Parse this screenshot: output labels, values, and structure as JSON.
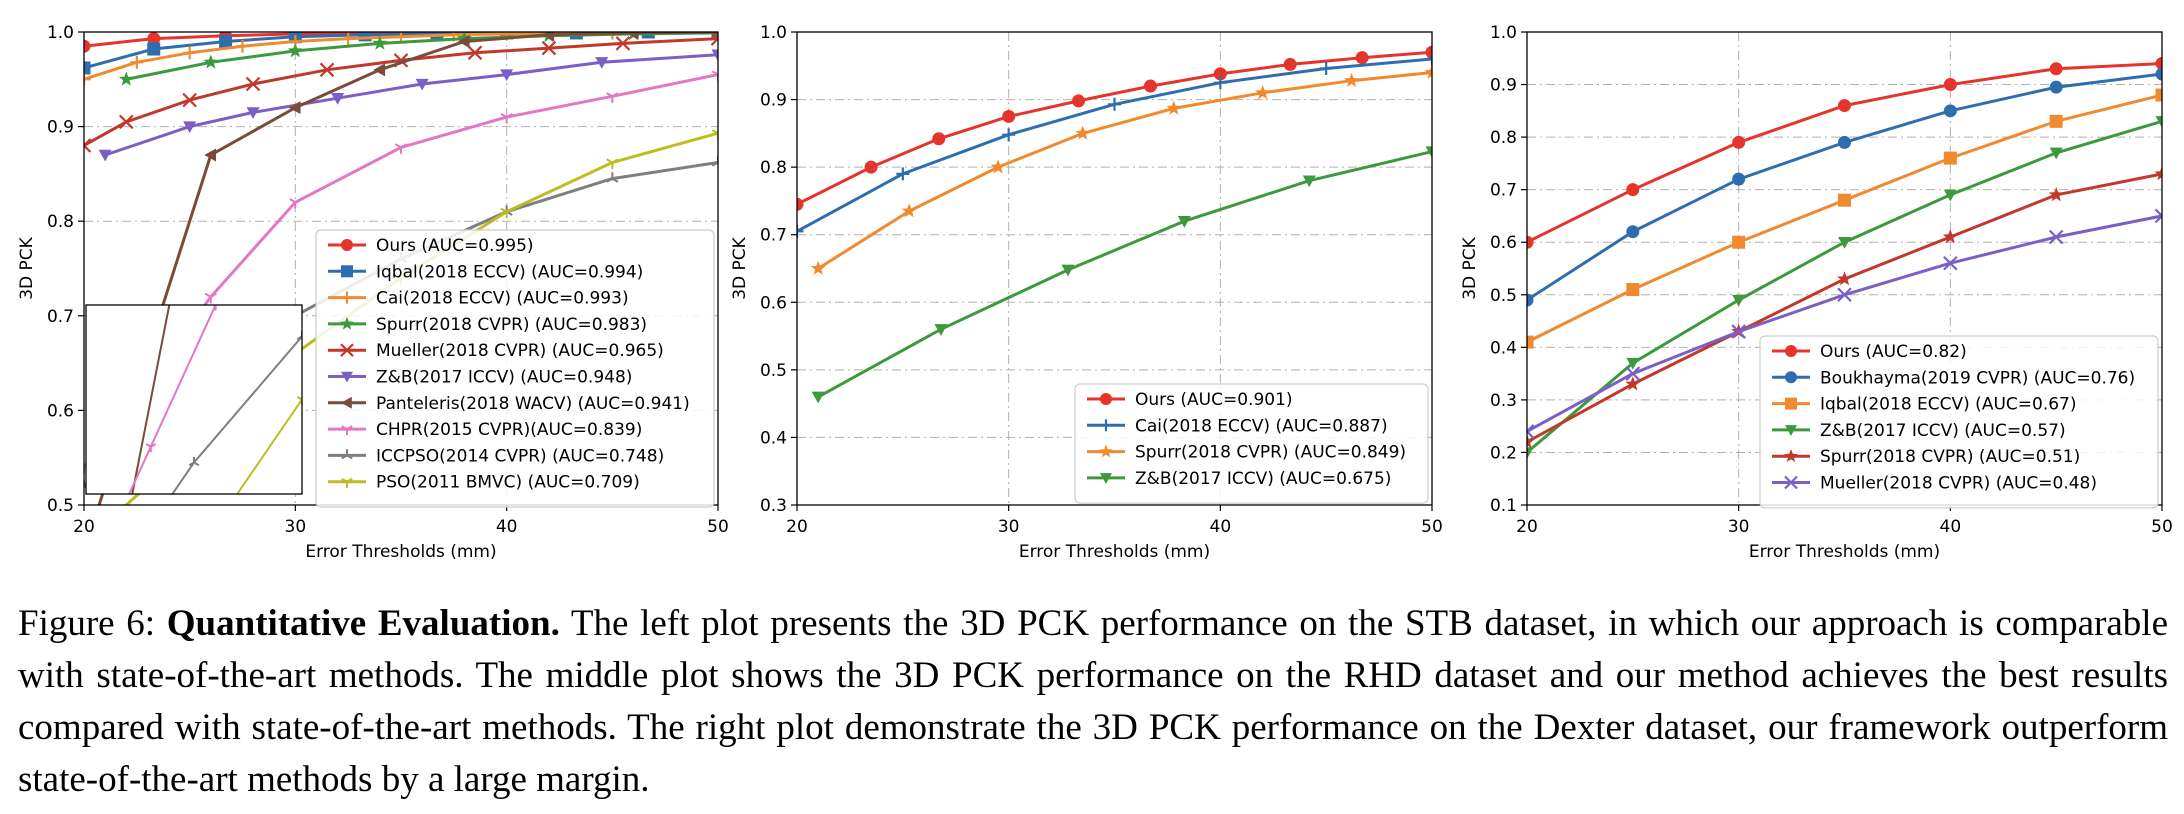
{
  "caption": {
    "label": "Figure 6:",
    "bold": "Quantitative Evaluation.",
    "text": "The left plot presents the 3D PCK performance on the STB dataset, in which our approach is comparable with state-of-the-art methods. The middle plot shows the 3D PCK performance on the RHD dataset and our method achieves the best results compared with state-of-the-art methods. The right plot demonstrate the 3D PCK performance on the Dexter dataset, our framework outperform state-of-the-art methods by a large margin."
  },
  "chart_data": [
    {
      "type": "line",
      "xlabel": "Error Thresholds (mm)",
      "ylabel": "3D PCK",
      "xlim": [
        20,
        50
      ],
      "ylim": [
        0.5,
        1.0
      ],
      "xticks": [
        "20",
        "30",
        "40",
        "50"
      ],
      "yticks": [
        "0.5",
        "0.6",
        "0.7",
        "0.8",
        "0.9",
        "1.0"
      ],
      "grid": true,
      "legend": "bottom-right",
      "inset": {
        "xlim": [
          20,
          30
        ],
        "ylim": [
          0.6,
          0.72
        ]
      },
      "series": [
        {
          "name": "Ours (AUC=0.995)",
          "color": "#e5342c",
          "marker": "circle",
          "x": [
            20,
            23.3,
            26.7,
            30,
            33.3,
            36.7,
            40,
            43.3,
            46.7,
            50
          ],
          "y": [
            0.985,
            0.993,
            0.996,
            0.998,
            0.999,
            0.999,
            1.0,
            1.0,
            1.0,
            1.0
          ]
        },
        {
          "name": "Iqbal(2018 ECCV) (AUC=0.994)",
          "color": "#2f6eae",
          "marker": "square",
          "x": [
            20,
            23.3,
            26.7,
            30,
            33.3,
            36.7,
            40,
            43.3,
            46.7,
            50
          ],
          "y": [
            0.962,
            0.982,
            0.99,
            0.995,
            0.997,
            0.998,
            0.999,
            0.999,
            1.0,
            1.0
          ]
        },
        {
          "name": "Cai(2018 ECCV) (AUC=0.993)",
          "color": "#f08a2e",
          "marker": "plus",
          "x": [
            20,
            22.5,
            25,
            27.5,
            30,
            32.5,
            35,
            37.5,
            40,
            45,
            50
          ],
          "y": [
            0.95,
            0.968,
            0.978,
            0.985,
            0.99,
            0.993,
            0.995,
            0.997,
            0.998,
            0.999,
            1.0
          ]
        },
        {
          "name": "Spurr(2018 CVPR) (AUC=0.983)",
          "color": "#3c9a3c",
          "marker": "star",
          "x": [
            22,
            26,
            30,
            34,
            38,
            42,
            46,
            50
          ],
          "y": [
            0.95,
            0.968,
            0.98,
            0.988,
            0.993,
            0.996,
            0.998,
            0.999
          ]
        },
        {
          "name": "Mueller(2018 CVPR) (AUC=0.965)",
          "color": "#c0392b",
          "marker": "x",
          "x": [
            20,
            22,
            25,
            28,
            31.5,
            35,
            38.5,
            42,
            45.5,
            50
          ],
          "y": [
            0.88,
            0.905,
            0.928,
            0.945,
            0.96,
            0.97,
            0.978,
            0.983,
            0.988,
            0.993
          ]
        },
        {
          "name": "Z&B(2017 ICCV) (AUC=0.948)",
          "color": "#7b5ec6",
          "marker": "triangle-down",
          "x": [
            21,
            25,
            28,
            32,
            36,
            40,
            44.5,
            50
          ],
          "y": [
            0.87,
            0.9,
            0.915,
            0.93,
            0.945,
            0.955,
            0.968,
            0.976
          ]
        },
        {
          "name": "Panteleris(2018 WACV) (AUC=0.941)",
          "color": "#7a4b3a",
          "marker": "triangle-left",
          "x": [
            20,
            26,
            30,
            34,
            38,
            42,
            46,
            50
          ],
          "y": [
            0.45,
            0.87,
            0.92,
            0.96,
            0.99,
            0.997,
            0.999,
            1.0
          ]
        },
        {
          "name": "CHPR(2015 CVPR)(AUC=0.839)",
          "color": "#e377c2",
          "marker": "tri-down",
          "x": [
            20,
            23,
            26,
            30,
            35,
            40,
            45,
            50
          ],
          "y": [
            0.54,
            0.63,
            0.72,
            0.82,
            0.878,
            0.91,
            0.932,
            0.955
          ]
        },
        {
          "name": "ICCPSO(2014 CVPR) (AUC=0.748)",
          "color": "#7f7f7f",
          "marker": "tri-up",
          "x": [
            20,
            25,
            30,
            35,
            40,
            45,
            50
          ],
          "y": [
            0.52,
            0.62,
            0.7,
            0.76,
            0.81,
            0.845,
            0.862
          ]
        },
        {
          "name": "PSO(2011 BMVC) (AUC=0.709)",
          "color": "#bcbd22",
          "marker": "tri-down",
          "x": [
            20,
            25,
            30,
            35,
            40,
            45,
            50
          ],
          "y": [
            0.46,
            0.56,
            0.66,
            0.74,
            0.81,
            0.862,
            0.893
          ]
        }
      ]
    },
    {
      "type": "line",
      "xlabel": "Error Thresholds (mm)",
      "ylabel": "3D PCK",
      "xlim": [
        20,
        50
      ],
      "ylim": [
        0.3,
        1.0
      ],
      "xticks": [
        "20",
        "30",
        "40",
        "50"
      ],
      "yticks": [
        "0.3",
        "0.4",
        "0.5",
        "0.6",
        "0.7",
        "0.8",
        "0.9",
        "1.0"
      ],
      "grid": true,
      "legend": "bottom-right",
      "series": [
        {
          "name": "Ours (AUC=0.901)",
          "color": "#e5342c",
          "marker": "circle",
          "x": [
            20,
            23.5,
            26.7,
            30,
            33.3,
            36.7,
            40,
            43.3,
            46.7,
            50
          ],
          "y": [
            0.745,
            0.8,
            0.842,
            0.875,
            0.898,
            0.92,
            0.938,
            0.952,
            0.962,
            0.97
          ]
        },
        {
          "name": "Cai(2018 ECCV) (AUC=0.887)",
          "color": "#2f6eae",
          "marker": "plus",
          "x": [
            20,
            25,
            30,
            35,
            40,
            45,
            50
          ],
          "y": [
            0.705,
            0.79,
            0.848,
            0.893,
            0.925,
            0.946,
            0.96
          ]
        },
        {
          "name": "Spurr(2018 CVPR) (AUC=0.849)",
          "color": "#f08a2e",
          "marker": "star",
          "x": [
            21,
            25.3,
            29.5,
            33.5,
            37.8,
            42,
            46.2,
            50
          ],
          "y": [
            0.65,
            0.735,
            0.8,
            0.85,
            0.887,
            0.91,
            0.928,
            0.94
          ]
        },
        {
          "name": "Z&B(2017 ICCV) (AUC=0.675)",
          "color": "#3c9a3c",
          "marker": "triangle-down",
          "x": [
            21,
            26.8,
            32.8,
            38.3,
            44.2,
            50
          ],
          "y": [
            0.46,
            0.56,
            0.648,
            0.72,
            0.78,
            0.823
          ]
        }
      ]
    },
    {
      "type": "line",
      "xlabel": "Error Thresholds (mm)",
      "ylabel": "3D PCK",
      "xlim": [
        20,
        50
      ],
      "ylim": [
        0.1,
        1.0
      ],
      "xticks": [
        "20",
        "30",
        "40",
        "50"
      ],
      "yticks": [
        "0.1",
        "0.2",
        "0.3",
        "0.4",
        "0.5",
        "0.6",
        "0.7",
        "0.8",
        "0.9",
        "1.0"
      ],
      "grid": true,
      "legend": "bottom-right",
      "series": [
        {
          "name": "Ours (AUC=0.82)",
          "color": "#e5342c",
          "marker": "circle",
          "x": [
            20,
            25,
            30,
            35,
            40,
            45,
            50
          ],
          "y": [
            0.6,
            0.7,
            0.79,
            0.86,
            0.9,
            0.93,
            0.94
          ]
        },
        {
          "name": "Boukhayma(2019 CVPR) (AUC=0.76)",
          "color": "#2f6eae",
          "marker": "circle",
          "x": [
            20,
            25,
            30,
            35,
            40,
            45,
            50
          ],
          "y": [
            0.49,
            0.62,
            0.72,
            0.79,
            0.85,
            0.895,
            0.92
          ]
        },
        {
          "name": "Iqbal(2018 ECCV) (AUC=0.67)",
          "color": "#f08a2e",
          "marker": "square",
          "x": [
            20,
            25,
            30,
            35,
            40,
            45,
            50
          ],
          "y": [
            0.41,
            0.51,
            0.6,
            0.68,
            0.76,
            0.83,
            0.88
          ]
        },
        {
          "name": "Z&B(2017 ICCV) (AUC=0.57)",
          "color": "#3c9a3c",
          "marker": "triangle-down",
          "x": [
            20,
            25,
            30,
            35,
            40,
            45,
            50
          ],
          "y": [
            0.2,
            0.37,
            0.49,
            0.6,
            0.69,
            0.77,
            0.83
          ]
        },
        {
          "name": "Spurr(2018 CVPR) (AUC=0.51)",
          "color": "#c0392b",
          "marker": "star",
          "x": [
            20,
            25,
            30,
            35,
            40,
            45,
            50
          ],
          "y": [
            0.22,
            0.33,
            0.43,
            0.53,
            0.61,
            0.69,
            0.73
          ]
        },
        {
          "name": "Mueller(2018 CVPR) (AUC=0.48)",
          "color": "#7b5ec6",
          "marker": "x",
          "x": [
            20,
            25,
            30,
            35,
            40,
            45,
            50
          ],
          "y": [
            0.24,
            0.35,
            0.43,
            0.5,
            0.56,
            0.61,
            0.65
          ]
        }
      ]
    }
  ]
}
